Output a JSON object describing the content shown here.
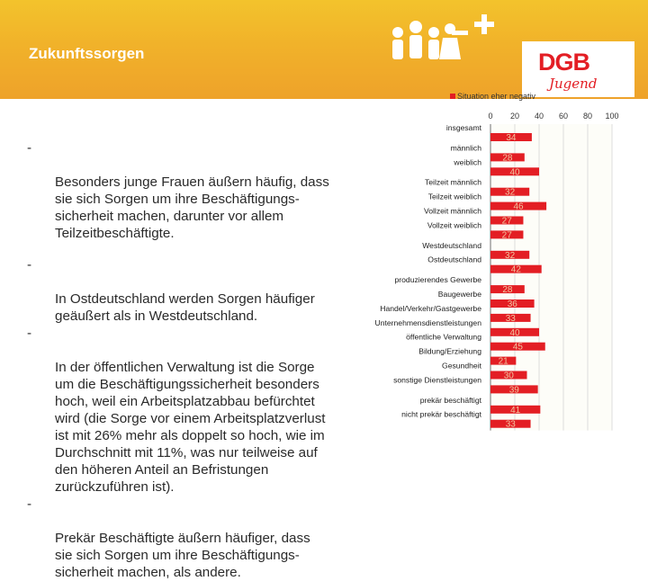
{
  "slide": {
    "title": "Zukunftssorgen",
    "logo": {
      "brand": "DGB",
      "sub": "Jugend"
    }
  },
  "bullets": [
    {
      "marker": "-",
      "text": "Besonders junge Frauen äußern häufig, dass\nsie sich Sorgen um ihre Beschäftigungs-\nsicherheit machen, darunter vor allem\nTeilzeitbeschäftigte."
    },
    {
      "marker": "-",
      "text": "In Ostdeutschland werden Sorgen häufiger\ngeäußert als in Westdeutschland."
    },
    {
      "marker": "-",
      "text": "In der öffentlichen Verwaltung ist die Sorge\num die Beschäftigungssicherheit besonders\nhoch, weil ein Arbeitsplatzabbau befürchtet\nwird (die Sorge vor einem Arbeitsplatzverlust\nist mit 26% mehr als doppelt so hoch, wie im\nDurchschnitt mit 11%, was nur teilweise auf\nden höheren Anteil an Befristungen\nzurückzuführen ist)."
    },
    {
      "marker": "-",
      "text": "Prekär Beschäftigte äußern häufiger, dass\nsie sich Sorgen um ihre Beschäftigungs-\nsicherheit machen, als andere."
    }
  ],
  "colors": {
    "bar": "#e31e24",
    "header_top": "#f3c32c",
    "header_bottom": "#eea22a",
    "chart_bg": "#fdfdf8",
    "grid": "#c8c8c8"
  },
  "chart_data": {
    "type": "bar",
    "orientation": "horizontal",
    "legend": {
      "label": "Situation eher negativ",
      "position": "top"
    },
    "xlim": [
      0,
      100
    ],
    "xticks": [
      0,
      20,
      40,
      60,
      80,
      100
    ],
    "categories": [
      "insgesamt",
      "männlich",
      "weiblich",
      "Teilzeit männlich",
      "Teilzeit weiblich",
      "Vollzeit männlich",
      "Vollzeit weiblich",
      "Westdeutschland",
      "Ostdeutschland",
      "produzierendes Gewerbe",
      "Baugewerbe",
      "Handel/Verkehr/Gastgewerbe",
      "Unternehmensdienstleistungen",
      "öffentliche Verwaltung",
      "Bildung/Erziehung",
      "Gesundheit",
      "sonstige Dienstleistungen",
      "prekär beschäftigt",
      "nicht prekär beschäftigt"
    ],
    "values": [
      34,
      28,
      40,
      32,
      46,
      27,
      27,
      32,
      42,
      28,
      36,
      33,
      40,
      45,
      21,
      30,
      39,
      41,
      33
    ],
    "groups": [
      [
        0
      ],
      [
        1,
        2
      ],
      [
        3,
        4,
        5,
        6
      ],
      [
        7,
        8
      ],
      [
        9,
        10,
        11,
        12,
        13,
        14,
        15,
        16
      ],
      [
        17,
        18
      ]
    ]
  }
}
